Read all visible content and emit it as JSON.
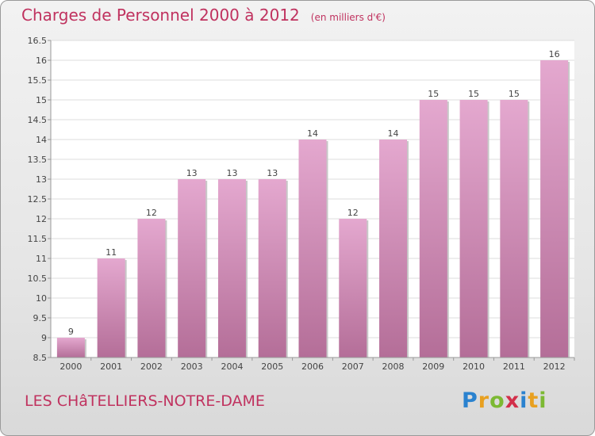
{
  "title": "Charges de Personnel 2000 à 2012",
  "unit_note": "(en milliers d'€)",
  "commune": "LES CHâTELLIERS-NOTRE-DAME",
  "logo": {
    "letters": [
      "P",
      "r",
      "o",
      "x",
      "i",
      "t",
      "i"
    ],
    "colors": [
      "#2a82cf",
      "#e8a020",
      "#7cb933",
      "#d22f4a",
      "#2a82cf",
      "#e8a020",
      "#7cb933"
    ]
  },
  "colors": {
    "bar": "#e0a0c8",
    "bar_dark": "#b46e98",
    "title": "#c0325f"
  },
  "chart_data": {
    "type": "bar",
    "categories": [
      "2000",
      "2001",
      "2002",
      "2003",
      "2004",
      "2005",
      "2006",
      "2007",
      "2008",
      "2009",
      "2010",
      "2011",
      "2012"
    ],
    "values": [
      9,
      11,
      12,
      13,
      13,
      13,
      14,
      12,
      14,
      15,
      15,
      15,
      16
    ],
    "value_labels": [
      "9",
      "11",
      "12",
      "13",
      "13",
      "13",
      "14",
      "12",
      "14",
      "15",
      "15",
      "15",
      "16"
    ],
    "ylim": [
      8.5,
      16.5
    ],
    "yticks": [
      "8.5",
      "9",
      "9.5",
      "10",
      "10.5",
      "11",
      "11.5",
      "12",
      "12.5",
      "13",
      "13.5",
      "14",
      "14.5",
      "15",
      "15.5",
      "16",
      "16.5"
    ],
    "grid": true
  }
}
